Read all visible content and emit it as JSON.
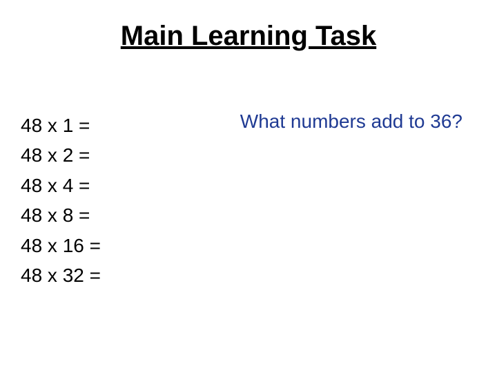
{
  "title": {
    "text": "Main Learning Task",
    "color": "#000000",
    "fontsize": 40
  },
  "equations": {
    "color": "#000000",
    "fontsize": 28,
    "lines": [
      "48 x 1 =",
      "48 x 2 =",
      "48 x 4 =",
      "48 x 8 =",
      "48 x 16 =",
      "48 x 32 ="
    ]
  },
  "question": {
    "text": "What numbers add to 36?",
    "color": "#1f3a93",
    "fontsize": 28
  },
  "background_color": "#ffffff"
}
